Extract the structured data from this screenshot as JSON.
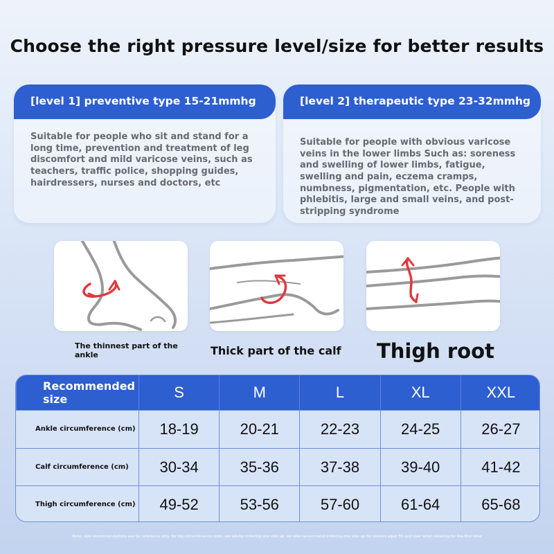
{
  "title": "Choose the right pressure level/size for better results",
  "levels": [
    {
      "heading": "[level 1] preventive type 15-21mmhg",
      "body": "Suitable for people who sit and stand for a long time, prevention and treatment of leg discomfort and mild varicose veins, such as teachers, traffic police, shopping guides, hairdressers, nurses and doctors, etc"
    },
    {
      "heading": "[level 2] therapeutic type 23-32mmhg",
      "body": "Suitable for people with obvious varicose veins in the lower limbs Such as: soreness and swelling of lower limbs, fatigue, swelling and pain, eczema cramps, numbness, pigmentation, etc. People with phlebitis, large and small veins, and post-stripping syndrome"
    }
  ],
  "measure_points": [
    {
      "caption": "The thinnest part of the ankle",
      "icon": "ankle-measure-icon"
    },
    {
      "caption": "Thick part of the calf",
      "icon": "calf-measure-icon"
    },
    {
      "caption": "Thigh root",
      "icon": "thigh-measure-icon"
    }
  ],
  "size_table": {
    "header_label": "Recommended size",
    "sizes": [
      "S",
      "M",
      "L",
      "XL",
      "XXL"
    ],
    "rows": [
      {
        "label": "Ankle circumference (cm)",
        "values": [
          "18-19",
          "20-21",
          "22-23",
          "24-25",
          "26-27"
        ]
      },
      {
        "label": "Calf circumference (cm)",
        "values": [
          "30-34",
          "35-36",
          "37-38",
          "39-40",
          "41-42"
        ]
      },
      {
        "label": "Thigh circumference (cm)",
        "values": [
          "49-52",
          "53-56",
          "57-60",
          "61-64",
          "65-68"
        ]
      }
    ]
  },
  "note": "Note: size recommendations are for reference only. for leg circumference sizes, we advise ordering one size up. we also recommend ordering one size up for seniors aged 55 and over when wearing for the first time",
  "colors": {
    "accent": "#2e5fd0",
    "arrow": "#e0393e",
    "outline": "#9a9a9a"
  }
}
